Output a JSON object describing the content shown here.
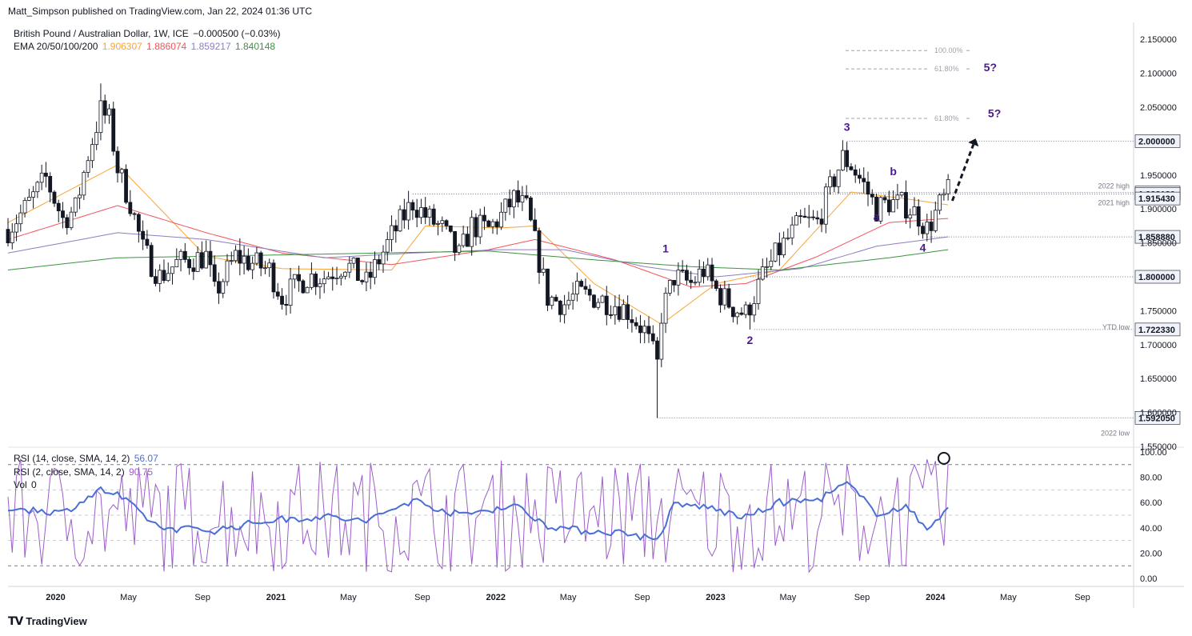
{
  "publisher_line": "Matt_Simpson published on TradingView.com, Jan 22, 2024 01:36 UTC",
  "branding": "TradingView",
  "legend": {
    "symbol": "British Pound / Australian Dollar, 1W, ICE",
    "change": "−0.000500 (−0.03%)",
    "ema_label": "EMA 20/50/100/200",
    "ema_values": [
      "1.906307",
      "1.886074",
      "1.859217",
      "1.840148"
    ],
    "ema_colors": [
      "#f7a537",
      "#f2545b",
      "#8e7cc3",
      "#3f9142"
    ],
    "rsi14_label": "RSI (14, close, SMA, 14, 2)",
    "rsi14_value": "56.07",
    "rsi2_label": "RSI (2, close, SMA, 14, 2)",
    "rsi2_value": "90.75",
    "vol_label": "Vol",
    "vol_value": "0"
  },
  "colors": {
    "rsi14": "#4a6fd4",
    "rsi2": "#9c5ec9",
    "wave_label": "#4a1a8c",
    "price_box": "#f0f3fa"
  },
  "chart_data": [
    {
      "type": "candlestick",
      "title": "British Pound / Australian Dollar, 1W, ICE",
      "ylim": [
        1.55,
        2.175
      ],
      "y_ticks": [
        "2.150000",
        "2.100000",
        "2.050000",
        "1.950000",
        "1.900000",
        "1.850000",
        "1.750000",
        "1.700000",
        "1.650000",
        "1.600000",
        "1.550000"
      ],
      "x_ticks": [
        "2020",
        "May",
        "Sep",
        "2021",
        "May",
        "Sep",
        "2022",
        "May",
        "Sep",
        "2023",
        "May",
        "Sep",
        "2024",
        "May",
        "Sep"
      ],
      "x_tick_dates": [
        "2020-01-01",
        "2020-05-01",
        "2020-09-01",
        "2021-01-01",
        "2021-05-01",
        "2021-09-01",
        "2022-01-01",
        "2022-05-01",
        "2022-09-01",
        "2023-01-01",
        "2023-05-01",
        "2023-09-01",
        "2024-01-01",
        "2024-05-01",
        "2024-09-01"
      ],
      "x_range": [
        "2019-10-14",
        "2024-11-25"
      ],
      "price_levels": [
        {
          "value": 2.0,
          "label": "2.000000",
          "note": ""
        },
        {
          "value": 1.92423,
          "label": "1.924230",
          "note": "2022 high"
        },
        {
          "value": 1.92212,
          "label": "1.922120",
          "note": "2021 high"
        },
        {
          "value": 1.91543,
          "label": "1.915430",
          "note": ""
        },
        {
          "value": 1.85888,
          "label": "1.858880",
          "note": ""
        },
        {
          "value": 1.8,
          "label": "1.800000",
          "note": ""
        },
        {
          "value": 1.72233,
          "label": "1.722330",
          "note": "YTD low"
        },
        {
          "value": 1.59205,
          "label": "1.592050",
          "note": "2022 low"
        }
      ],
      "fib_levels": [
        {
          "value": 2.1335,
          "label": "100.00%"
        },
        {
          "value": 2.1065,
          "label": "61.80%"
        },
        {
          "value": 2.0335,
          "label": "61.80%"
        }
      ],
      "wave_labels": [
        {
          "text": "1",
          "date": "2022-10-10",
          "price": 1.836
        },
        {
          "text": "2",
          "date": "2023-02-27",
          "price": 1.701
        },
        {
          "text": "3",
          "date": "2023-08-07",
          "price": 2.015
        },
        {
          "text": "a",
          "date": "2023-09-25",
          "price": 1.883
        },
        {
          "text": "b",
          "date": "2023-10-23",
          "price": 1.95
        },
        {
          "text": "4",
          "date": "2023-12-11",
          "price": 1.837
        },
        {
          "text": "5?",
          "date": "2024-04-01",
          "price": 2.103
        },
        {
          "text": "5?",
          "date": "2024-04-08",
          "price": 2.035
        }
      ],
      "forecast_arrow": {
        "from": [
          "2024-01-29",
          1.912
        ],
        "to": [
          "2024-03-04",
          1.995
        ]
      },
      "keypoints": [
        [
          "2019-10-14",
          1.87
        ],
        [
          "2019-11-11",
          1.9
        ],
        [
          "2019-12-16",
          1.945
        ],
        [
          "2020-01-13",
          1.885
        ],
        [
          "2020-02-03",
          1.9
        ],
        [
          "2020-02-24",
          1.98
        ],
        [
          "2020-03-16",
          2.045
        ],
        [
          "2020-03-30",
          2.03
        ],
        [
          "2020-04-13",
          1.96
        ],
        [
          "2020-05-04",
          1.91
        ],
        [
          "2020-05-25",
          1.84
        ],
        [
          "2020-06-22",
          1.8
        ],
        [
          "2020-07-20",
          1.82
        ],
        [
          "2020-09-07",
          1.83
        ],
        [
          "2020-09-21",
          1.775
        ],
        [
          "2020-10-26",
          1.83
        ],
        [
          "2020-11-23",
          1.82
        ],
        [
          "2020-12-21",
          1.81
        ],
        [
          "2021-01-11",
          1.77
        ],
        [
          "2021-02-22",
          1.8
        ],
        [
          "2021-03-22",
          1.8
        ],
        [
          "2021-04-26",
          1.82
        ],
        [
          "2021-05-31",
          1.79
        ],
        [
          "2021-07-12",
          1.86
        ],
        [
          "2021-08-16",
          1.91
        ],
        [
          "2021-09-06",
          1.89
        ],
        [
          "2021-10-04",
          1.87
        ],
        [
          "2021-11-01",
          1.83
        ],
        [
          "2021-11-22",
          1.875
        ],
        [
          "2021-12-20",
          1.87
        ],
        [
          "2022-01-10",
          1.89
        ],
        [
          "2022-01-31",
          1.915
        ],
        [
          "2022-02-21",
          1.9
        ],
        [
          "2022-03-07",
          1.85
        ],
        [
          "2022-03-28",
          1.77
        ],
        [
          "2022-04-25",
          1.76
        ],
        [
          "2022-05-16",
          1.775
        ],
        [
          "2022-06-13",
          1.77
        ],
        [
          "2022-07-18",
          1.76
        ],
        [
          "2022-08-08",
          1.75
        ],
        [
          "2022-09-05",
          1.72
        ],
        [
          "2022-09-26",
          1.67
        ],
        [
          "2022-10-03",
          1.745
        ],
        [
          "2022-10-24",
          1.8
        ],
        [
          "2022-11-21",
          1.79
        ],
        [
          "2022-12-12",
          1.81
        ],
        [
          "2023-01-02",
          1.78
        ],
        [
          "2023-01-30",
          1.755
        ],
        [
          "2023-02-20",
          1.745
        ],
        [
          "2023-03-20",
          1.8
        ],
        [
          "2023-04-17",
          1.84
        ],
        [
          "2023-05-22",
          1.88
        ],
        [
          "2023-06-19",
          1.88
        ],
        [
          "2023-07-10",
          1.93
        ],
        [
          "2023-07-31",
          1.975
        ],
        [
          "2023-08-14",
          1.965
        ],
        [
          "2023-09-04",
          1.935
        ],
        [
          "2023-09-25",
          1.9
        ],
        [
          "2023-10-16",
          1.91
        ],
        [
          "2023-11-13",
          1.905
        ],
        [
          "2023-12-04",
          1.89
        ],
        [
          "2023-12-18",
          1.87
        ],
        [
          "2024-01-08",
          1.905
        ],
        [
          "2024-01-22",
          1.924
        ]
      ],
      "wick_extremes": [
        {
          "date": "2020-03-16",
          "high": 2.085
        },
        {
          "date": "2022-09-26",
          "low": 1.5921
        },
        {
          "date": "2023-08-07",
          "high": 1.999
        },
        {
          "date": "2023-02-27",
          "low": 1.7223
        }
      ],
      "ema_series": [
        {
          "name": "EMA 20",
          "keypoints": [
            [
              "2019-10-14",
              1.88
            ],
            [
              "2020-04-13",
              1.965
            ],
            [
              "2020-09-07",
              1.83
            ],
            [
              "2021-01-11",
              1.812
            ],
            [
              "2021-07-12",
              1.81
            ],
            [
              "2021-09-06",
              1.875
            ],
            [
              "2022-01-10",
              1.872
            ],
            [
              "2022-03-07",
              1.875
            ],
            [
              "2022-06-13",
              1.79
            ],
            [
              "2022-10-03",
              1.73
            ],
            [
              "2023-01-02",
              1.79
            ],
            [
              "2023-04-17",
              1.81
            ],
            [
              "2023-08-14",
              1.925
            ],
            [
              "2023-11-13",
              1.915
            ],
            [
              "2024-01-22",
              1.906
            ]
          ]
        },
        {
          "name": "EMA 50",
          "keypoints": [
            [
              "2019-10-14",
              1.855
            ],
            [
              "2020-04-13",
              1.905
            ],
            [
              "2020-09-07",
              1.865
            ],
            [
              "2021-01-11",
              1.835
            ],
            [
              "2021-07-12",
              1.818
            ],
            [
              "2021-12-20",
              1.84
            ],
            [
              "2022-03-07",
              1.855
            ],
            [
              "2022-07-18",
              1.825
            ],
            [
              "2022-11-21",
              1.785
            ],
            [
              "2023-02-20",
              1.79
            ],
            [
              "2023-06-19",
              1.83
            ],
            [
              "2023-10-16",
              1.88
            ],
            [
              "2024-01-22",
              1.886
            ]
          ]
        },
        {
          "name": "EMA 100",
          "keypoints": [
            [
              "2019-10-14",
              1.835
            ],
            [
              "2020-04-13",
              1.865
            ],
            [
              "2020-09-07",
              1.855
            ],
            [
              "2021-03-22",
              1.828
            ],
            [
              "2021-08-16",
              1.835
            ],
            [
              "2022-01-10",
              1.84
            ],
            [
              "2022-04-25",
              1.84
            ],
            [
              "2022-09-05",
              1.815
            ],
            [
              "2023-01-02",
              1.8
            ],
            [
              "2023-05-22",
              1.812
            ],
            [
              "2023-09-25",
              1.845
            ],
            [
              "2024-01-22",
              1.859
            ]
          ]
        },
        {
          "name": "EMA 200",
          "keypoints": [
            [
              "2019-10-14",
              1.81
            ],
            [
              "2020-04-13",
              1.828
            ],
            [
              "2020-12-21",
              1.832
            ],
            [
              "2021-12-20",
              1.838
            ],
            [
              "2022-06-13",
              1.825
            ],
            [
              "2022-11-21",
              1.815
            ],
            [
              "2023-04-17",
              1.81
            ],
            [
              "2023-10-16",
              1.828
            ],
            [
              "2024-01-22",
              1.84
            ]
          ]
        }
      ]
    },
    {
      "type": "line",
      "title": "RSI",
      "ylim": [
        0,
        100
      ],
      "y_ticks": [
        "100.00",
        "80.00",
        "60.00",
        "40.00",
        "20.00",
        "0.00"
      ],
      "levels": [
        90,
        70,
        50,
        30,
        10
      ],
      "series": [
        {
          "name": "RSI (14, close, SMA, 14, 2)",
          "keypoints": [
            [
              "2019-10-14",
              56
            ],
            [
              "2020-01-13",
              52
            ],
            [
              "2020-03-16",
              70
            ],
            [
              "2020-04-13",
              66
            ],
            [
              "2020-06-22",
              40
            ],
            [
              "2020-09-21",
              38
            ],
            [
              "2020-12-21",
              46
            ],
            [
              "2021-03-22",
              49
            ],
            [
              "2021-05-31",
              45
            ],
            [
              "2021-08-16",
              62
            ],
            [
              "2021-11-01",
              50
            ],
            [
              "2022-01-31",
              58
            ],
            [
              "2022-03-28",
              42
            ],
            [
              "2022-05-16",
              38
            ],
            [
              "2022-08-08",
              36
            ],
            [
              "2022-09-26",
              30
            ],
            [
              "2022-10-24",
              58
            ],
            [
              "2022-12-12",
              57
            ],
            [
              "2023-02-20",
              48
            ],
            [
              "2023-04-17",
              60
            ],
            [
              "2023-06-19",
              62
            ],
            [
              "2023-08-07",
              75
            ],
            [
              "2023-09-25",
              52
            ],
            [
              "2023-11-13",
              56
            ],
            [
              "2023-12-18",
              40
            ],
            [
              "2024-01-22",
              56.07
            ]
          ]
        },
        {
          "name": "RSI (2, close, SMA, 14, 2)",
          "keypoints": [
            [
              "2019-10-14",
              60
            ],
            [
              "2024-01-22",
              90.75
            ]
          ]
        }
      ],
      "marked_point": {
        "date": "2024-01-15",
        "value": 95
      }
    }
  ]
}
